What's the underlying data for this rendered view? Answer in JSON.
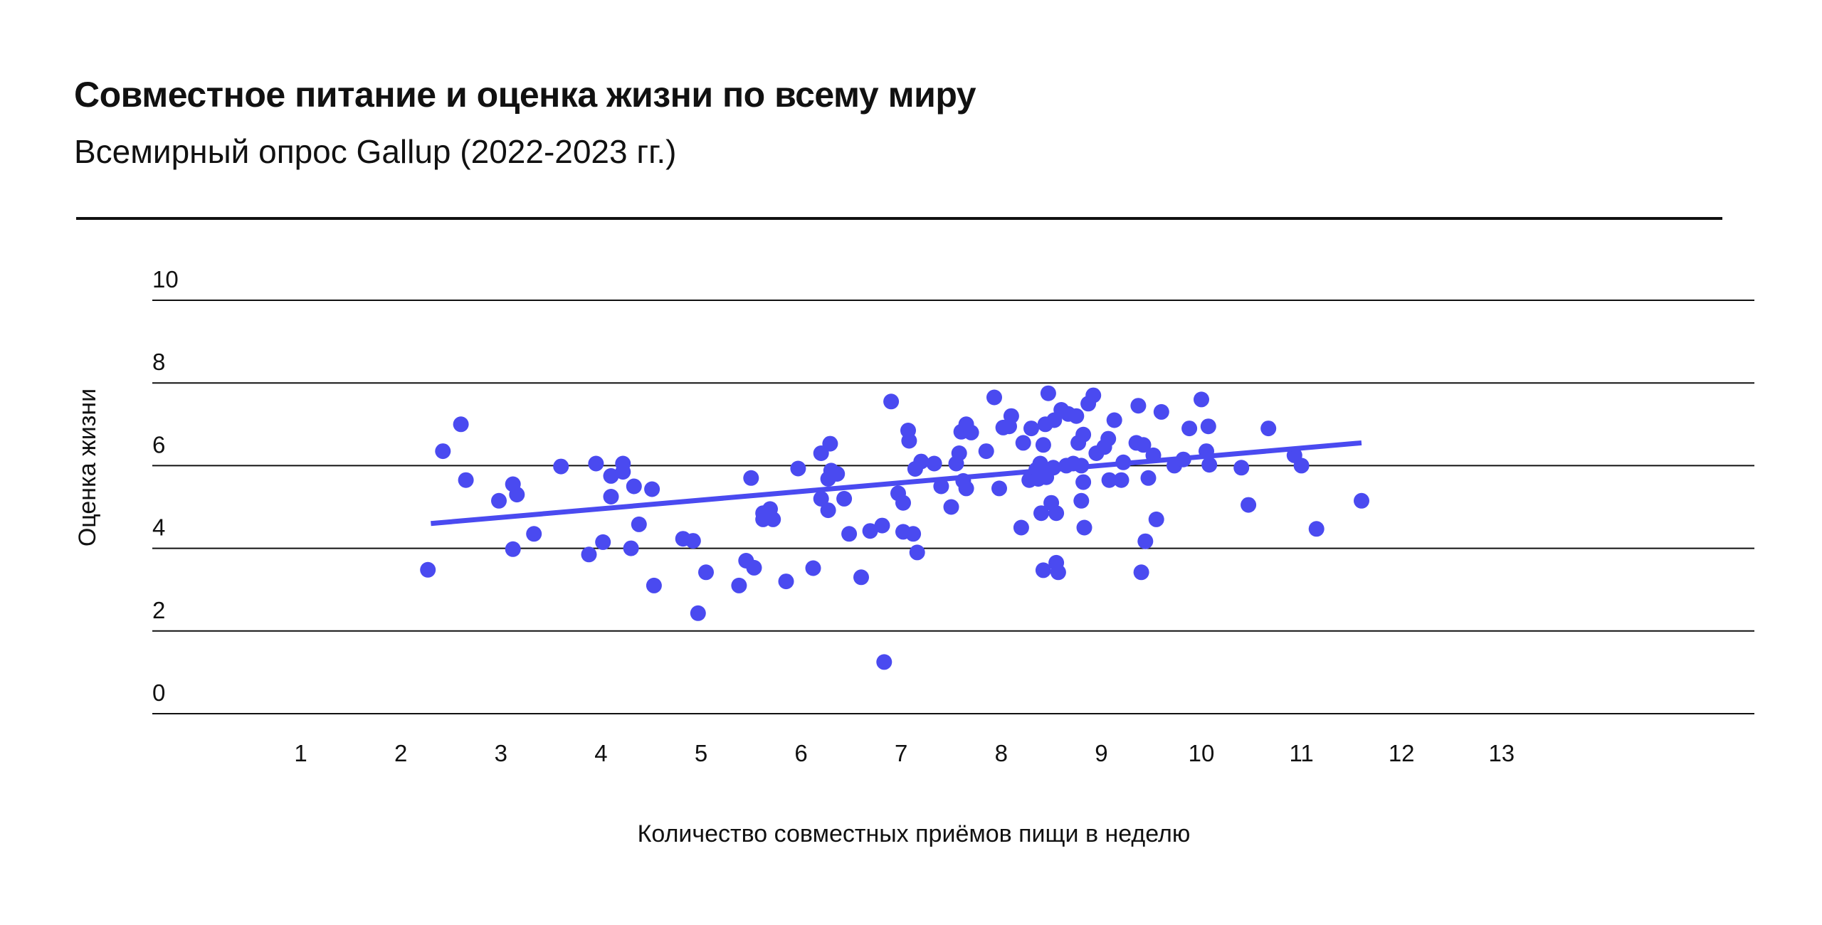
{
  "header": {
    "title": "Совместное питание и оценка жизни по всему миру",
    "subtitle": "Всемирный опрос Gallup (2022-2023 гг.)"
  },
  "colors": {
    "accent": "#4a4af0",
    "grid": "#111111",
    "text": "#111111"
  },
  "chart_data": {
    "type": "scatter",
    "title": "Совместное питание и оценка жизни по всему миру",
    "subtitle": "Всемирный опрос Gallup (2022-2023 гг.)",
    "xlabel": "Количество совместных приёмов пищи в неделю",
    "ylabel": "Оценка жизни",
    "xlim": [
      0,
      14.8
    ],
    "ylim": [
      0,
      10
    ],
    "xticks": [
      1,
      2,
      3,
      4,
      5,
      6,
      7,
      8,
      9,
      10,
      11,
      12,
      13
    ],
    "yticks": [
      0,
      2,
      4,
      6,
      8,
      10
    ],
    "grid": "horizontal",
    "trendline": {
      "x": [
        2.3,
        11.6
      ],
      "y": [
        4.6,
        6.55
      ]
    },
    "series": [
      {
        "points": [
          [
            2.27,
            3.48
          ],
          [
            2.42,
            6.35
          ],
          [
            2.6,
            7.0
          ],
          [
            2.65,
            5.65
          ],
          [
            2.98,
            5.15
          ],
          [
            3.12,
            5.55
          ],
          [
            3.16,
            5.3
          ],
          [
            3.12,
            3.98
          ],
          [
            3.33,
            4.35
          ],
          [
            3.6,
            5.98
          ],
          [
            3.88,
            3.85
          ],
          [
            3.95,
            6.05
          ],
          [
            4.02,
            4.15
          ],
          [
            4.1,
            5.75
          ],
          [
            4.1,
            5.25
          ],
          [
            4.22,
            6.05
          ],
          [
            4.22,
            5.85
          ],
          [
            4.3,
            4.0
          ],
          [
            4.33,
            5.5
          ],
          [
            4.38,
            4.58
          ],
          [
            4.51,
            5.43
          ],
          [
            4.53,
            3.1
          ],
          [
            4.82,
            4.23
          ],
          [
            4.92,
            4.18
          ],
          [
            4.97,
            2.43
          ],
          [
            5.05,
            3.42
          ],
          [
            5.38,
            3.1
          ],
          [
            5.45,
            3.7
          ],
          [
            5.5,
            5.7
          ],
          [
            5.53,
            3.53
          ],
          [
            5.62,
            4.85
          ],
          [
            5.62,
            4.7
          ],
          [
            5.69,
            4.95
          ],
          [
            5.72,
            4.7
          ],
          [
            5.85,
            3.2
          ],
          [
            5.97,
            5.93
          ],
          [
            6.12,
            3.52
          ],
          [
            6.2,
            6.3
          ],
          [
            6.2,
            5.2
          ],
          [
            6.27,
            5.68
          ],
          [
            6.27,
            4.92
          ],
          [
            6.29,
            6.53
          ],
          [
            6.3,
            5.88
          ],
          [
            6.36,
            5.8
          ],
          [
            6.43,
            5.2
          ],
          [
            6.48,
            4.35
          ],
          [
            6.6,
            3.3
          ],
          [
            6.69,
            4.42
          ],
          [
            6.81,
            4.55
          ],
          [
            6.83,
            1.25
          ],
          [
            6.9,
            7.55
          ],
          [
            6.97,
            5.33
          ],
          [
            7.02,
            5.1
          ],
          [
            7.02,
            4.4
          ],
          [
            7.07,
            6.85
          ],
          [
            7.08,
            6.6
          ],
          [
            7.12,
            4.35
          ],
          [
            7.14,
            5.92
          ],
          [
            7.16,
            3.9
          ],
          [
            7.2,
            6.1
          ],
          [
            7.33,
            6.05
          ],
          [
            7.4,
            5.5
          ],
          [
            7.5,
            5.0
          ],
          [
            7.55,
            6.05
          ],
          [
            7.58,
            6.3
          ],
          [
            7.6,
            6.82
          ],
          [
            7.62,
            5.63
          ],
          [
            7.65,
            7.0
          ],
          [
            7.65,
            5.45
          ],
          [
            7.7,
            6.8
          ],
          [
            7.85,
            6.35
          ],
          [
            7.93,
            7.65
          ],
          [
            7.98,
            5.45
          ],
          [
            8.02,
            6.92
          ],
          [
            8.08,
            6.95
          ],
          [
            8.1,
            7.2
          ],
          [
            8.2,
            4.5
          ],
          [
            8.22,
            6.55
          ],
          [
            8.28,
            5.65
          ],
          [
            8.3,
            6.9
          ],
          [
            8.35,
            5.9
          ],
          [
            8.37,
            5.68
          ],
          [
            8.39,
            6.05
          ],
          [
            8.4,
            4.85
          ],
          [
            8.42,
            3.47
          ],
          [
            8.42,
            6.5
          ],
          [
            8.44,
            7.0
          ],
          [
            8.45,
            5.72
          ],
          [
            8.47,
            7.75
          ],
          [
            8.5,
            5.1
          ],
          [
            8.52,
            5.95
          ],
          [
            8.53,
            7.1
          ],
          [
            8.55,
            4.85
          ],
          [
            8.55,
            3.65
          ],
          [
            8.57,
            3.42
          ],
          [
            8.6,
            7.35
          ],
          [
            8.65,
            6.0
          ],
          [
            8.67,
            7.25
          ],
          [
            8.72,
            6.05
          ],
          [
            8.75,
            7.2
          ],
          [
            8.77,
            6.55
          ],
          [
            8.8,
            5.15
          ],
          [
            8.8,
            6.0
          ],
          [
            8.82,
            6.75
          ],
          [
            8.82,
            5.6
          ],
          [
            8.83,
            4.5
          ],
          [
            8.87,
            7.5
          ],
          [
            8.92,
            7.7
          ],
          [
            8.95,
            6.3
          ],
          [
            9.03,
            6.45
          ],
          [
            9.07,
            6.65
          ],
          [
            9.08,
            5.65
          ],
          [
            9.13,
            7.1
          ],
          [
            9.2,
            5.65
          ],
          [
            9.22,
            6.08
          ],
          [
            9.35,
            6.55
          ],
          [
            9.37,
            7.45
          ],
          [
            9.4,
            3.42
          ],
          [
            9.42,
            6.5
          ],
          [
            9.44,
            4.17
          ],
          [
            9.47,
            5.7
          ],
          [
            9.52,
            6.25
          ],
          [
            9.55,
            4.7
          ],
          [
            9.6,
            7.3
          ],
          [
            9.73,
            6.0
          ],
          [
            9.82,
            6.15
          ],
          [
            9.88,
            6.9
          ],
          [
            10.0,
            7.6
          ],
          [
            10.05,
            6.35
          ],
          [
            10.07,
            6.95
          ],
          [
            10.08,
            6.02
          ],
          [
            10.4,
            5.95
          ],
          [
            10.47,
            5.05
          ],
          [
            10.67,
            6.9
          ],
          [
            10.93,
            6.25
          ],
          [
            11.0,
            6.0
          ],
          [
            11.15,
            4.47
          ],
          [
            11.6,
            5.15
          ]
        ]
      }
    ]
  }
}
